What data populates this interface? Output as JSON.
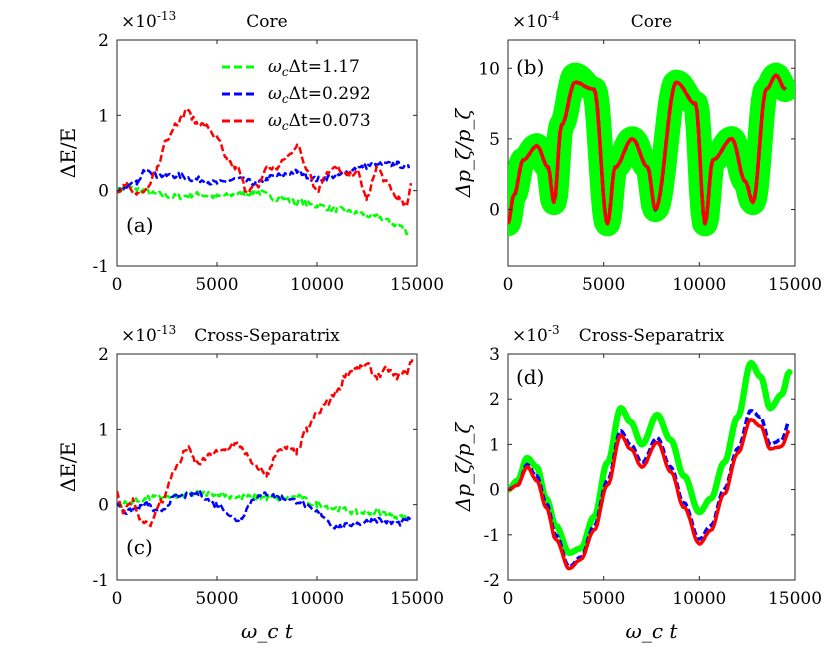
{
  "chart_data": [
    {
      "id": "a",
      "type": "line",
      "title": "Core",
      "panel_label": "(a)",
      "xlabel": "",
      "ylabel": "ΔE/E",
      "y_multiplier": "×10",
      "y_exponent": "-13",
      "xlim": [
        0,
        15000
      ],
      "ylim": [
        -1,
        2
      ],
      "xticks": [
        0,
        5000,
        10000,
        15000
      ],
      "yticks": [
        -1,
        0,
        1,
        2
      ],
      "legend": "top-right",
      "series": [
        {
          "name": "green",
          "color": "#00ff00",
          "x": [
            0,
            500,
            1000,
            2000,
            3000,
            4000,
            5000,
            6000,
            7000,
            8000,
            9000,
            10000,
            11000,
            12000,
            13000,
            14000,
            14600
          ],
          "y": [
            0,
            0.05,
            0.02,
            -0.05,
            -0.08,
            -0.05,
            -0.08,
            -0.05,
            -0.02,
            -0.1,
            -0.15,
            -0.2,
            -0.25,
            -0.3,
            -0.35,
            -0.45,
            -0.55
          ]
        },
        {
          "name": "blue",
          "color": "#0000ff",
          "x": [
            0,
            500,
            1000,
            1500,
            2000,
            3000,
            4000,
            5000,
            6000,
            7000,
            8000,
            9000,
            10000,
            11000,
            12000,
            13000,
            14000,
            14600
          ],
          "y": [
            0,
            0.05,
            0.1,
            0.3,
            0.2,
            0.2,
            0.15,
            0.1,
            0.15,
            0.1,
            0.2,
            0.25,
            0.15,
            0.2,
            0.3,
            0.35,
            0.35,
            0.3
          ]
        },
        {
          "name": "red",
          "color": "#ff0000",
          "x": [
            0,
            500,
            1000,
            1500,
            2000,
            2500,
            3000,
            3500,
            4000,
            4500,
            5000,
            5500,
            6000,
            6500,
            7000,
            7500,
            8000,
            8500,
            9000,
            9500,
            10000,
            10500,
            11000,
            11500,
            12000,
            12500,
            13000,
            13500,
            14000,
            14500,
            14700
          ],
          "y": [
            0,
            0.1,
            -0.05,
            0,
            0.3,
            0.7,
            0.9,
            1.05,
            0.9,
            0.85,
            0.7,
            0.4,
            0.3,
            0,
            0.05,
            0.3,
            0.3,
            0.45,
            0.6,
            0.3,
            0,
            0.25,
            0.3,
            0.2,
            0.25,
            -0.1,
            0.3,
            0.1,
            -0.1,
            -0.2,
            0.1
          ]
        }
      ]
    },
    {
      "id": "b",
      "type": "line",
      "title": "Core",
      "panel_label": "(b)",
      "xlabel": "",
      "ylabel": "Δp_ζ/p_ζ",
      "y_multiplier": "×10",
      "y_exponent": "-4",
      "xlim": [
        0,
        15000
      ],
      "ylim": [
        -4,
        12
      ],
      "xticks": [
        0,
        5000,
        10000,
        15000
      ],
      "yticks": [
        0,
        5,
        10
      ],
      "series": [
        {
          "name": "green band",
          "color": "#00ff00",
          "band_width": 1.8,
          "x": [
            0,
            300,
            800,
            1500,
            2100,
            2400,
            2800,
            3500,
            4500,
            5200,
            5600,
            6500,
            7300,
            7700,
            8800,
            9800,
            10300,
            10700,
            11700,
            12400,
            12800,
            13500,
            14000,
            14500
          ],
          "y": [
            -1,
            1,
            3.5,
            4.5,
            3,
            0.5,
            6,
            9.5,
            8.5,
            -1,
            3,
            5,
            3,
            0,
            9,
            7.5,
            -1,
            3.5,
            5,
            2,
            0.5,
            8.5,
            9.5,
            8.5
          ]
        },
        {
          "name": "blue",
          "color": "#0000ff",
          "x": [
            0,
            300,
            800,
            1500,
            2100,
            2400,
            2800,
            3500,
            4500,
            5200,
            5600,
            6500,
            7300,
            7700,
            8800,
            9800,
            10300,
            10700,
            11700,
            12400,
            12800,
            13500,
            14000,
            14500
          ],
          "y": [
            -1,
            1,
            3.5,
            4.5,
            3,
            0.5,
            6,
            9,
            8.5,
            -1,
            3,
            5,
            3,
            0,
            9,
            7.5,
            -1,
            3.5,
            5,
            2,
            0.5,
            8.5,
            9.5,
            8.5
          ]
        },
        {
          "name": "red",
          "color": "#ff0000",
          "x": [
            0,
            300,
            800,
            1500,
            2100,
            2400,
            2800,
            3500,
            4500,
            5200,
            5600,
            6500,
            7300,
            7700,
            8800,
            9800,
            10300,
            10700,
            11700,
            12400,
            12800,
            13500,
            14000,
            14500
          ],
          "y": [
            -1,
            1,
            3.5,
            4.5,
            3,
            0.5,
            6,
            9,
            8.5,
            -1,
            3,
            5,
            3,
            0,
            9,
            7.5,
            -1,
            3.5,
            5,
            2,
            0.5,
            8.5,
            9.5,
            8.5
          ]
        }
      ]
    },
    {
      "id": "c",
      "type": "line",
      "title": "Cross-Separatrix",
      "panel_label": "(c)",
      "xlabel": "ω_c t",
      "ylabel": "ΔE/E",
      "y_multiplier": "×10",
      "y_exponent": "-13",
      "xlim": [
        0,
        15000
      ],
      "ylim": [
        -1,
        2
      ],
      "xticks": [
        0,
        5000,
        10000,
        15000
      ],
      "yticks": [
        -1,
        0,
        1,
        2
      ],
      "series": [
        {
          "name": "green",
          "color": "#00ff00",
          "x": [
            0,
            1000,
            2000,
            3000,
            4000,
            5000,
            6000,
            7000,
            8000,
            9000,
            10000,
            11000,
            12000,
            13000,
            14000,
            14700
          ],
          "y": [
            0,
            0.05,
            0.1,
            0.1,
            0.15,
            0.15,
            0.1,
            0.1,
            0.08,
            0.1,
            0,
            -0.05,
            -0.1,
            -0.1,
            -0.15,
            -0.2
          ]
        },
        {
          "name": "blue",
          "color": "#0000ff",
          "x": [
            0,
            500,
            1000,
            1500,
            2000,
            3000,
            4000,
            5000,
            6000,
            7000,
            7500,
            8000,
            9000,
            10000,
            11000,
            12000,
            13000,
            14000,
            14700
          ],
          "y": [
            0,
            -0.1,
            -0.05,
            0,
            -0.1,
            0.1,
            0.15,
            0,
            -0.2,
            0.1,
            0.15,
            0.1,
            0.05,
            -0.1,
            -0.3,
            -0.25,
            -0.2,
            -0.25,
            -0.2
          ]
        },
        {
          "name": "red",
          "color": "#ff0000",
          "x": [
            0,
            300,
            800,
            1200,
            1700,
            2200,
            3000,
            3500,
            4000,
            5000,
            6000,
            7000,
            7500,
            8000,
            8500,
            9000,
            9500,
            10000,
            10500,
            11000,
            11500,
            12000,
            12500,
            13000,
            13500,
            14000,
            14500,
            14800
          ],
          "y": [
            0.15,
            -0.1,
            0.05,
            -0.2,
            -0.25,
            0.05,
            0.5,
            0.75,
            0.55,
            0.7,
            0.8,
            0.5,
            0.4,
            0.7,
            0.75,
            0.7,
            1,
            1.2,
            1.35,
            1.5,
            1.75,
            1.8,
            1.85,
            1.7,
            1.8,
            1.7,
            1.75,
            1.95
          ]
        }
      ]
    },
    {
      "id": "d",
      "type": "line",
      "title": "Cross-Separatrix",
      "panel_label": "(d)",
      "xlabel": "ω_c t",
      "ylabel": "Δp_ζ/p_ζ",
      "y_multiplier": "×10",
      "y_exponent": "-3",
      "xlim": [
        0,
        15000
      ],
      "ylim": [
        -2,
        3
      ],
      "xticks": [
        0,
        5000,
        10000,
        15000
      ],
      "yticks": [
        -2,
        -1,
        0,
        1,
        2,
        3
      ],
      "series": [
        {
          "name": "green band",
          "color": "#00ff00",
          "band_width": 0.14,
          "x": [
            0,
            500,
            1000,
            1500,
            2000,
            2500,
            3200,
            3800,
            4500,
            5200,
            5900,
            6400,
            7000,
            7800,
            8500,
            9200,
            10000,
            10600,
            11300,
            12000,
            12700,
            13200,
            13700,
            14300,
            14700
          ],
          "y": [
            0,
            0.2,
            0.7,
            0.5,
            -0.2,
            -0.8,
            -1.4,
            -1.3,
            -0.6,
            0.6,
            1.8,
            1.5,
            1,
            1.65,
            1.1,
            0.3,
            -0.5,
            -0.2,
            0.6,
            1.6,
            2.8,
            2.5,
            1.8,
            2.1,
            2.6
          ]
        },
        {
          "name": "blue",
          "color": "#0000ff",
          "x": [
            0,
            500,
            1000,
            1500,
            2000,
            2500,
            3200,
            3800,
            4500,
            5200,
            5900,
            6400,
            7000,
            7800,
            8500,
            9200,
            10000,
            10600,
            11300,
            12000,
            12700,
            13200,
            13700,
            14300,
            14700
          ],
          "y": [
            0,
            0.1,
            0.55,
            0.3,
            -0.3,
            -1,
            -1.7,
            -1.5,
            -0.8,
            0.2,
            1.3,
            1,
            0.6,
            1.15,
            0.5,
            -0.3,
            -1.1,
            -0.8,
            0,
            0.9,
            1.75,
            1.6,
            1,
            1.1,
            1.5
          ]
        },
        {
          "name": "red",
          "color": "#ff0000",
          "x": [
            0,
            500,
            1000,
            1500,
            2000,
            2500,
            3200,
            3800,
            4500,
            5200,
            5900,
            6400,
            7000,
            7800,
            8500,
            9200,
            10000,
            10600,
            11300,
            12000,
            12700,
            13200,
            13700,
            14300,
            14700
          ],
          "y": [
            0,
            0.1,
            0.5,
            0.2,
            -0.4,
            -1.1,
            -1.75,
            -1.55,
            -0.9,
            0.1,
            1.2,
            0.9,
            0.5,
            1.05,
            0.4,
            -0.4,
            -1.2,
            -0.9,
            -0.1,
            0.8,
            1.55,
            1.4,
            0.9,
            0.95,
            1.3
          ]
        }
      ]
    }
  ],
  "legend": [
    {
      "label_prefix": "ω",
      "label_sub": "c",
      "label_mid": "Δt=",
      "value": "1.17",
      "color": "#00ff00"
    },
    {
      "label_prefix": "ω",
      "label_sub": "c",
      "label_mid": "Δt=",
      "value": "0.292",
      "color": "#0000ff"
    },
    {
      "label_prefix": "ω",
      "label_sub": "c",
      "label_mid": "Δt=",
      "value": "0.073",
      "color": "#ff0000"
    }
  ]
}
